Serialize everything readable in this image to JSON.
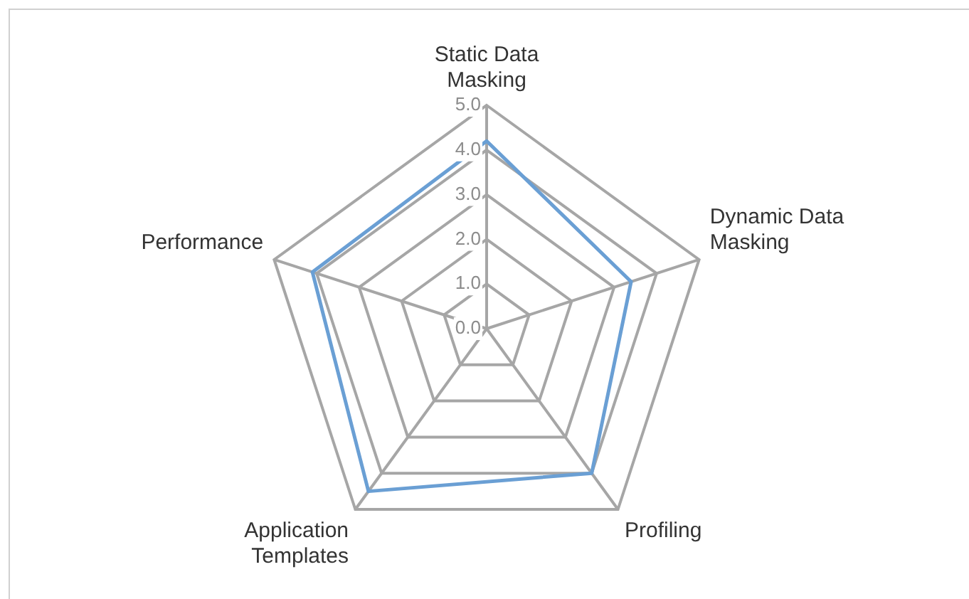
{
  "chart_data": {
    "type": "radar",
    "categories": [
      "Static Data Masking",
      "Dynamic Data Masking",
      "Profiling",
      "Application Templates",
      "Performance"
    ],
    "series": [
      {
        "color": "#6a9fd4",
        "values": [
          4.2,
          3.4,
          4.0,
          4.5,
          4.1
        ]
      }
    ],
    "ylim": [
      0,
      5
    ],
    "yticks": [
      {
        "value": 0,
        "label": "0.0"
      },
      {
        "value": 1,
        "label": "1.0"
      },
      {
        "value": 2,
        "label": "2.0"
      },
      {
        "value": 3,
        "label": "3.0"
      },
      {
        "value": 4,
        "label": "4.0"
      },
      {
        "value": 5,
        "label": "5.0"
      }
    ],
    "grid": true,
    "legend": false,
    "marker": "none"
  }
}
